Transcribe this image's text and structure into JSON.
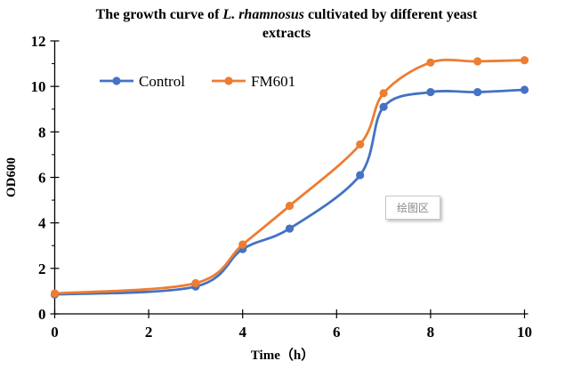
{
  "title": {
    "prefix": "The growth curve of ",
    "italic": "L. rhamnosus",
    "suffix": "  cultivated by different yeast extracts"
  },
  "tooltip": {
    "text": "绘图区"
  },
  "chart_data": {
    "type": "line",
    "title": "The growth curve of L. rhamnosus cultivated by different yeast extracts",
    "xlabel": "Time（h）",
    "ylabel": "OD600",
    "x": [
      0,
      3,
      4,
      5,
      6.5,
      7,
      8,
      9,
      10
    ],
    "series": [
      {
        "name": "Control",
        "color": "#4472C4",
        "values": [
          0.85,
          1.2,
          2.85,
          3.75,
          6.1,
          9.1,
          9.75,
          9.75,
          9.85
        ]
      },
      {
        "name": "FM601",
        "color": "#ED7D31",
        "values": [
          0.9,
          1.35,
          3.05,
          4.75,
          7.45,
          9.7,
          11.05,
          11.1,
          11.15
        ]
      }
    ],
    "xlim": [
      0,
      10
    ],
    "ylim": [
      0,
      12
    ],
    "x_ticks": [
      0,
      2,
      4,
      6,
      8,
      10
    ],
    "y_ticks": [
      0,
      2,
      4,
      6,
      8,
      10,
      12
    ],
    "y_minor_tick_step": 1,
    "grid": false,
    "legend_position": "top-left-inside",
    "line_style": "smooth",
    "marker": "circle",
    "axis_color": "#000000"
  }
}
